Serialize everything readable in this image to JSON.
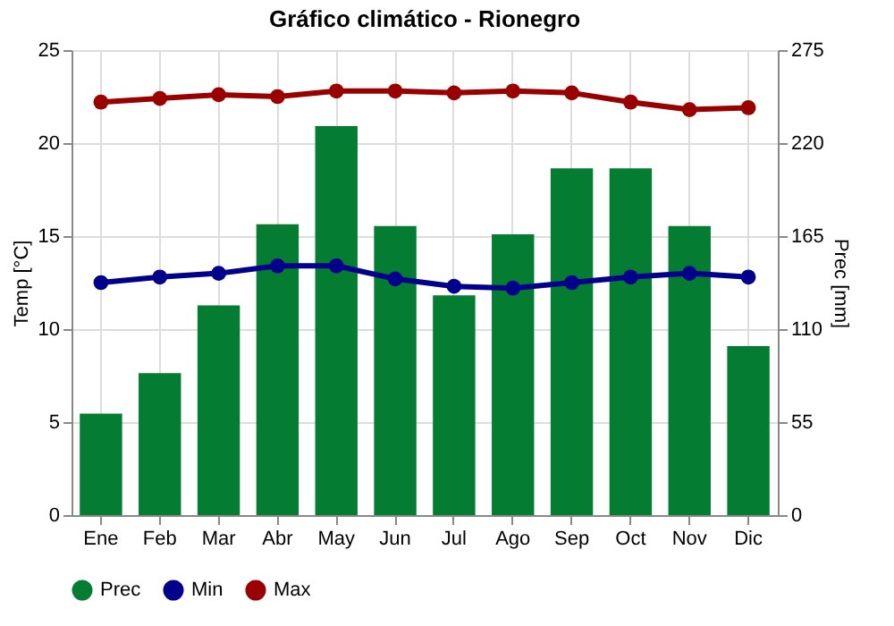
{
  "chart_data": {
    "type": "bar",
    "title": "Gráfico climático - Rionegro",
    "ylabel": "Temp [°C]",
    "y2label": "Prec [mm]",
    "categories": [
      "Ene",
      "Feb",
      "Mar",
      "Abr",
      "May",
      "Jun",
      "Jul",
      "Ago",
      "Sep",
      "Oct",
      "Nov",
      "Dic"
    ],
    "series": [
      {
        "name": "Prec",
        "axis": "y2",
        "color": "#047c32",
        "values": [
          60,
          84,
          124,
          172,
          230,
          171,
          130,
          166,
          205,
          205,
          171,
          100
        ]
      },
      {
        "name": "Min",
        "type": "line",
        "color": "#00008b",
        "values": [
          12.5,
          12.8,
          13.0,
          13.4,
          13.4,
          12.7,
          12.3,
          12.2,
          12.5,
          12.8,
          13.0,
          12.8
        ]
      },
      {
        "name": "Max",
        "type": "line",
        "color": "#990000",
        "values": [
          22.2,
          22.4,
          22.6,
          22.5,
          22.8,
          22.8,
          22.7,
          22.8,
          22.7,
          22.2,
          21.8,
          21.9
        ]
      }
    ],
    "ylim": [
      0,
      25
    ],
    "yticks": [
      0,
      5,
      10,
      15,
      20,
      25
    ],
    "y2lim": [
      0,
      275
    ],
    "y2ticks": [
      0,
      55,
      110,
      165,
      220,
      275
    ],
    "grid": true,
    "legend": "bottom",
    "marker": "circle"
  }
}
